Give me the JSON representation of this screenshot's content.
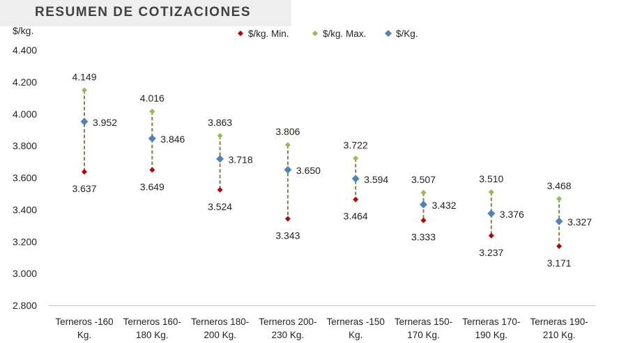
{
  "header": {
    "title": "RESUMEN DE COTIZACIONES"
  },
  "chart_data": {
    "type": "scatter",
    "title": "",
    "ylabel": "$/kg.",
    "xlabel": "",
    "ylim": [
      2800,
      4400
    ],
    "y_ticks": [
      "4.400",
      "4.200",
      "4.000",
      "3.800",
      "3.600",
      "3.400",
      "3.200",
      "3.000",
      "2.800"
    ],
    "y_tick_values": [
      4400,
      4200,
      4000,
      3800,
      3600,
      3400,
      3200,
      3000,
      2800
    ],
    "grid": false,
    "legend_position": "top",
    "categories": [
      [
        "Terneros -160",
        "Kg."
      ],
      [
        "Terneros 160-",
        "180 Kg."
      ],
      [
        "Terneros 180-",
        "200 Kg."
      ],
      [
        "Terneros 200-",
        "230 Kg."
      ],
      [
        "Terneras -150",
        "Kg."
      ],
      [
        "Terneras 150-",
        "170 Kg."
      ],
      [
        "Terneras 170-",
        "190 Kg."
      ],
      [
        "Terneras 190-",
        "210 Kg."
      ]
    ],
    "series": [
      {
        "name": "$/kg. Min.",
        "color": "#c00000",
        "values": [
          3637,
          3649,
          3524,
          3343,
          3464,
          3333,
          3237,
          3171
        ],
        "labels": [
          "3.637",
          "3.649",
          "3.524",
          "3.343",
          "3.464",
          "3.333",
          "3.237",
          "3.171"
        ]
      },
      {
        "name": "$/kg. Max.",
        "color": "#92bd4f",
        "values": [
          4149,
          4016,
          3863,
          3806,
          3722,
          3507,
          3510,
          3468
        ],
        "labels": [
          "4.149",
          "4.016",
          "3.863",
          "3.806",
          "3.722",
          "3.507",
          "3.510",
          "3.468"
        ]
      },
      {
        "name": "$/Kg.",
        "color": "#4f81bd",
        "values": [
          3952,
          3846,
          3718,
          3650,
          3594,
          3432,
          3376,
          3327
        ],
        "labels": [
          "3.952",
          "3.846",
          "3.718",
          "3.650",
          "3.594",
          "3.432",
          "3.376",
          "3.327"
        ]
      }
    ],
    "range_line_color": "#8b7d4a"
  }
}
